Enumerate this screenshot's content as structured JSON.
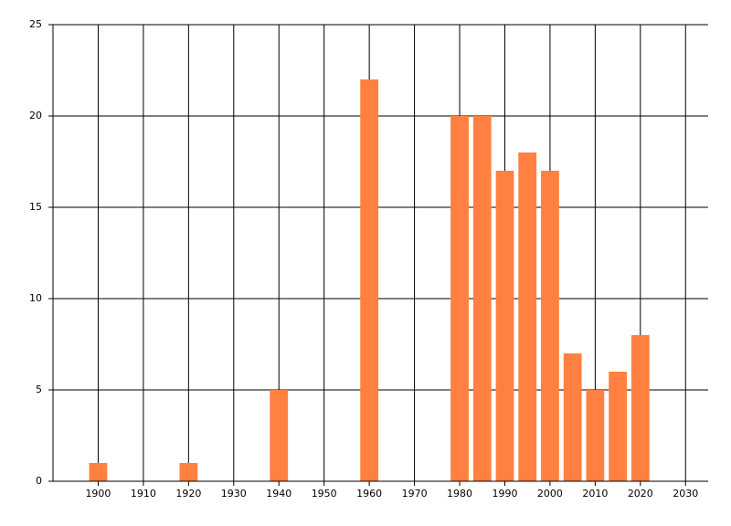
{
  "chart_data": {
    "type": "bar",
    "x": [
      1900,
      1920,
      1940,
      1960,
      1980,
      1985,
      1990,
      1995,
      2000,
      2005,
      2010,
      2015,
      2020
    ],
    "values": [
      1,
      1,
      5,
      22,
      20,
      20,
      17,
      18,
      17,
      7,
      5,
      6,
      8
    ],
    "color": "#ff8040",
    "xlim": [
      1890,
      2035
    ],
    "xticks": [
      1900,
      1910,
      1920,
      1930,
      1940,
      1950,
      1960,
      1970,
      1980,
      1990,
      2000,
      2010,
      2020,
      2030
    ],
    "ylim": [
      0,
      25
    ],
    "yticks": [
      0,
      5,
      10,
      15,
      20,
      25
    ],
    "grid": true
  }
}
